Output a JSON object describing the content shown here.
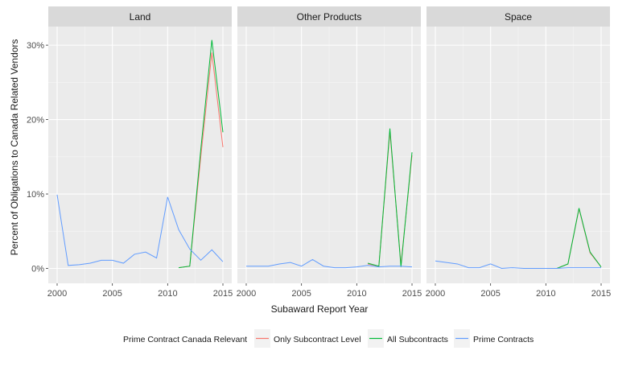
{
  "chart_data": {
    "type": "line",
    "xlabel": "Subaward Report Year",
    "ylabel": "Percent of Obligations to Canada Related Vendors",
    "xlim": [
      1999.2,
      2015.8
    ],
    "ylim": [
      -0.02,
      0.325
    ],
    "x_ticks": [
      2000,
      2005,
      2010,
      2015
    ],
    "x_tick_labels": [
      "2000",
      "2005",
      "2010",
      "2015"
    ],
    "y_ticks": [
      0,
      0.1,
      0.2,
      0.3
    ],
    "y_tick_labels": [
      "0%",
      "10%",
      "20%",
      "30%"
    ],
    "legend": {
      "title": "Prime Contract Canada Relevant",
      "position": "bottom",
      "entries": [
        {
          "label": "Only Subcontract Level",
          "color": "#F8766D"
        },
        {
          "label": "All Subcontracts",
          "color": "#00BA38"
        },
        {
          "label": "Prime Contracts",
          "color": "#619CFF"
        }
      ]
    },
    "panels": [
      {
        "title": "Land",
        "series": [
          {
            "name": "Only Subcontract Level",
            "color": "#F8766D",
            "x": [
              2011,
              2012,
              2013,
              2014,
              2015
            ],
            "y": [
              0.001,
              0.003,
              0.15,
              0.29,
              0.163
            ]
          },
          {
            "name": "All Subcontracts",
            "color": "#00BA38",
            "x": [
              2011,
              2012,
              2013,
              2014,
              2015
            ],
            "y": [
              0.001,
              0.003,
              0.16,
              0.307,
              0.183
            ]
          },
          {
            "name": "Prime Contracts",
            "color": "#619CFF",
            "x": [
              2000,
              2001,
              2002,
              2003,
              2004,
              2005,
              2006,
              2007,
              2008,
              2009,
              2010,
              2011,
              2012,
              2013,
              2014,
              2015
            ],
            "y": [
              0.099,
              0.004,
              0.005,
              0.007,
              0.011,
              0.011,
              0.007,
              0.019,
              0.022,
              0.014,
              0.096,
              0.052,
              0.026,
              0.011,
              0.025,
              0.009
            ]
          }
        ]
      },
      {
        "title": "Other Products",
        "series": [
          {
            "name": "Only Subcontract Level",
            "color": "#F8766D",
            "x": [
              2011,
              2012,
              2013,
              2014,
              2015
            ],
            "y": [
              0.006,
              0.003,
              0.184,
              0.005,
              0.152
            ]
          },
          {
            "name": "All Subcontracts",
            "color": "#00BA38",
            "x": [
              2011,
              2012,
              2013,
              2014,
              2015
            ],
            "y": [
              0.007,
              0.003,
              0.188,
              0.002,
              0.156
            ]
          },
          {
            "name": "Prime Contracts",
            "color": "#619CFF",
            "x": [
              2000,
              2001,
              2002,
              2003,
              2004,
              2005,
              2006,
              2007,
              2008,
              2009,
              2010,
              2011,
              2012,
              2013,
              2014,
              2015
            ],
            "y": [
              0.003,
              0.003,
              0.003,
              0.006,
              0.008,
              0.003,
              0.012,
              0.003,
              0.001,
              0.001,
              0.002,
              0.004,
              0.002,
              0.003,
              0.003,
              0.002
            ]
          }
        ]
      },
      {
        "title": "Space",
        "series": [
          {
            "name": "Only Subcontract Level",
            "color": "#F8766D",
            "x": [
              2010,
              2011,
              2012,
              2013,
              2014,
              2015
            ],
            "y": [
              0.0,
              0.0,
              0.006,
              0.08,
              0.021,
              0.002
            ]
          },
          {
            "name": "All Subcontracts",
            "color": "#00BA38",
            "x": [
              2010,
              2011,
              2012,
              2013,
              2014,
              2015
            ],
            "y": [
              0.0,
              0.0,
              0.006,
              0.081,
              0.022,
              0.002
            ]
          },
          {
            "name": "Prime Contracts",
            "color": "#619CFF",
            "x": [
              2000,
              2001,
              2002,
              2003,
              2004,
              2005,
              2006,
              2007,
              2008,
              2009,
              2010,
              2011,
              2012,
              2013,
              2014,
              2015
            ],
            "y": [
              0.01,
              0.008,
              0.006,
              0.001,
              0.001,
              0.006,
              0.0,
              0.001,
              0.0,
              0.0,
              0.0,
              0.0,
              0.001,
              0.001,
              0.001,
              0.001
            ]
          }
        ]
      }
    ]
  }
}
